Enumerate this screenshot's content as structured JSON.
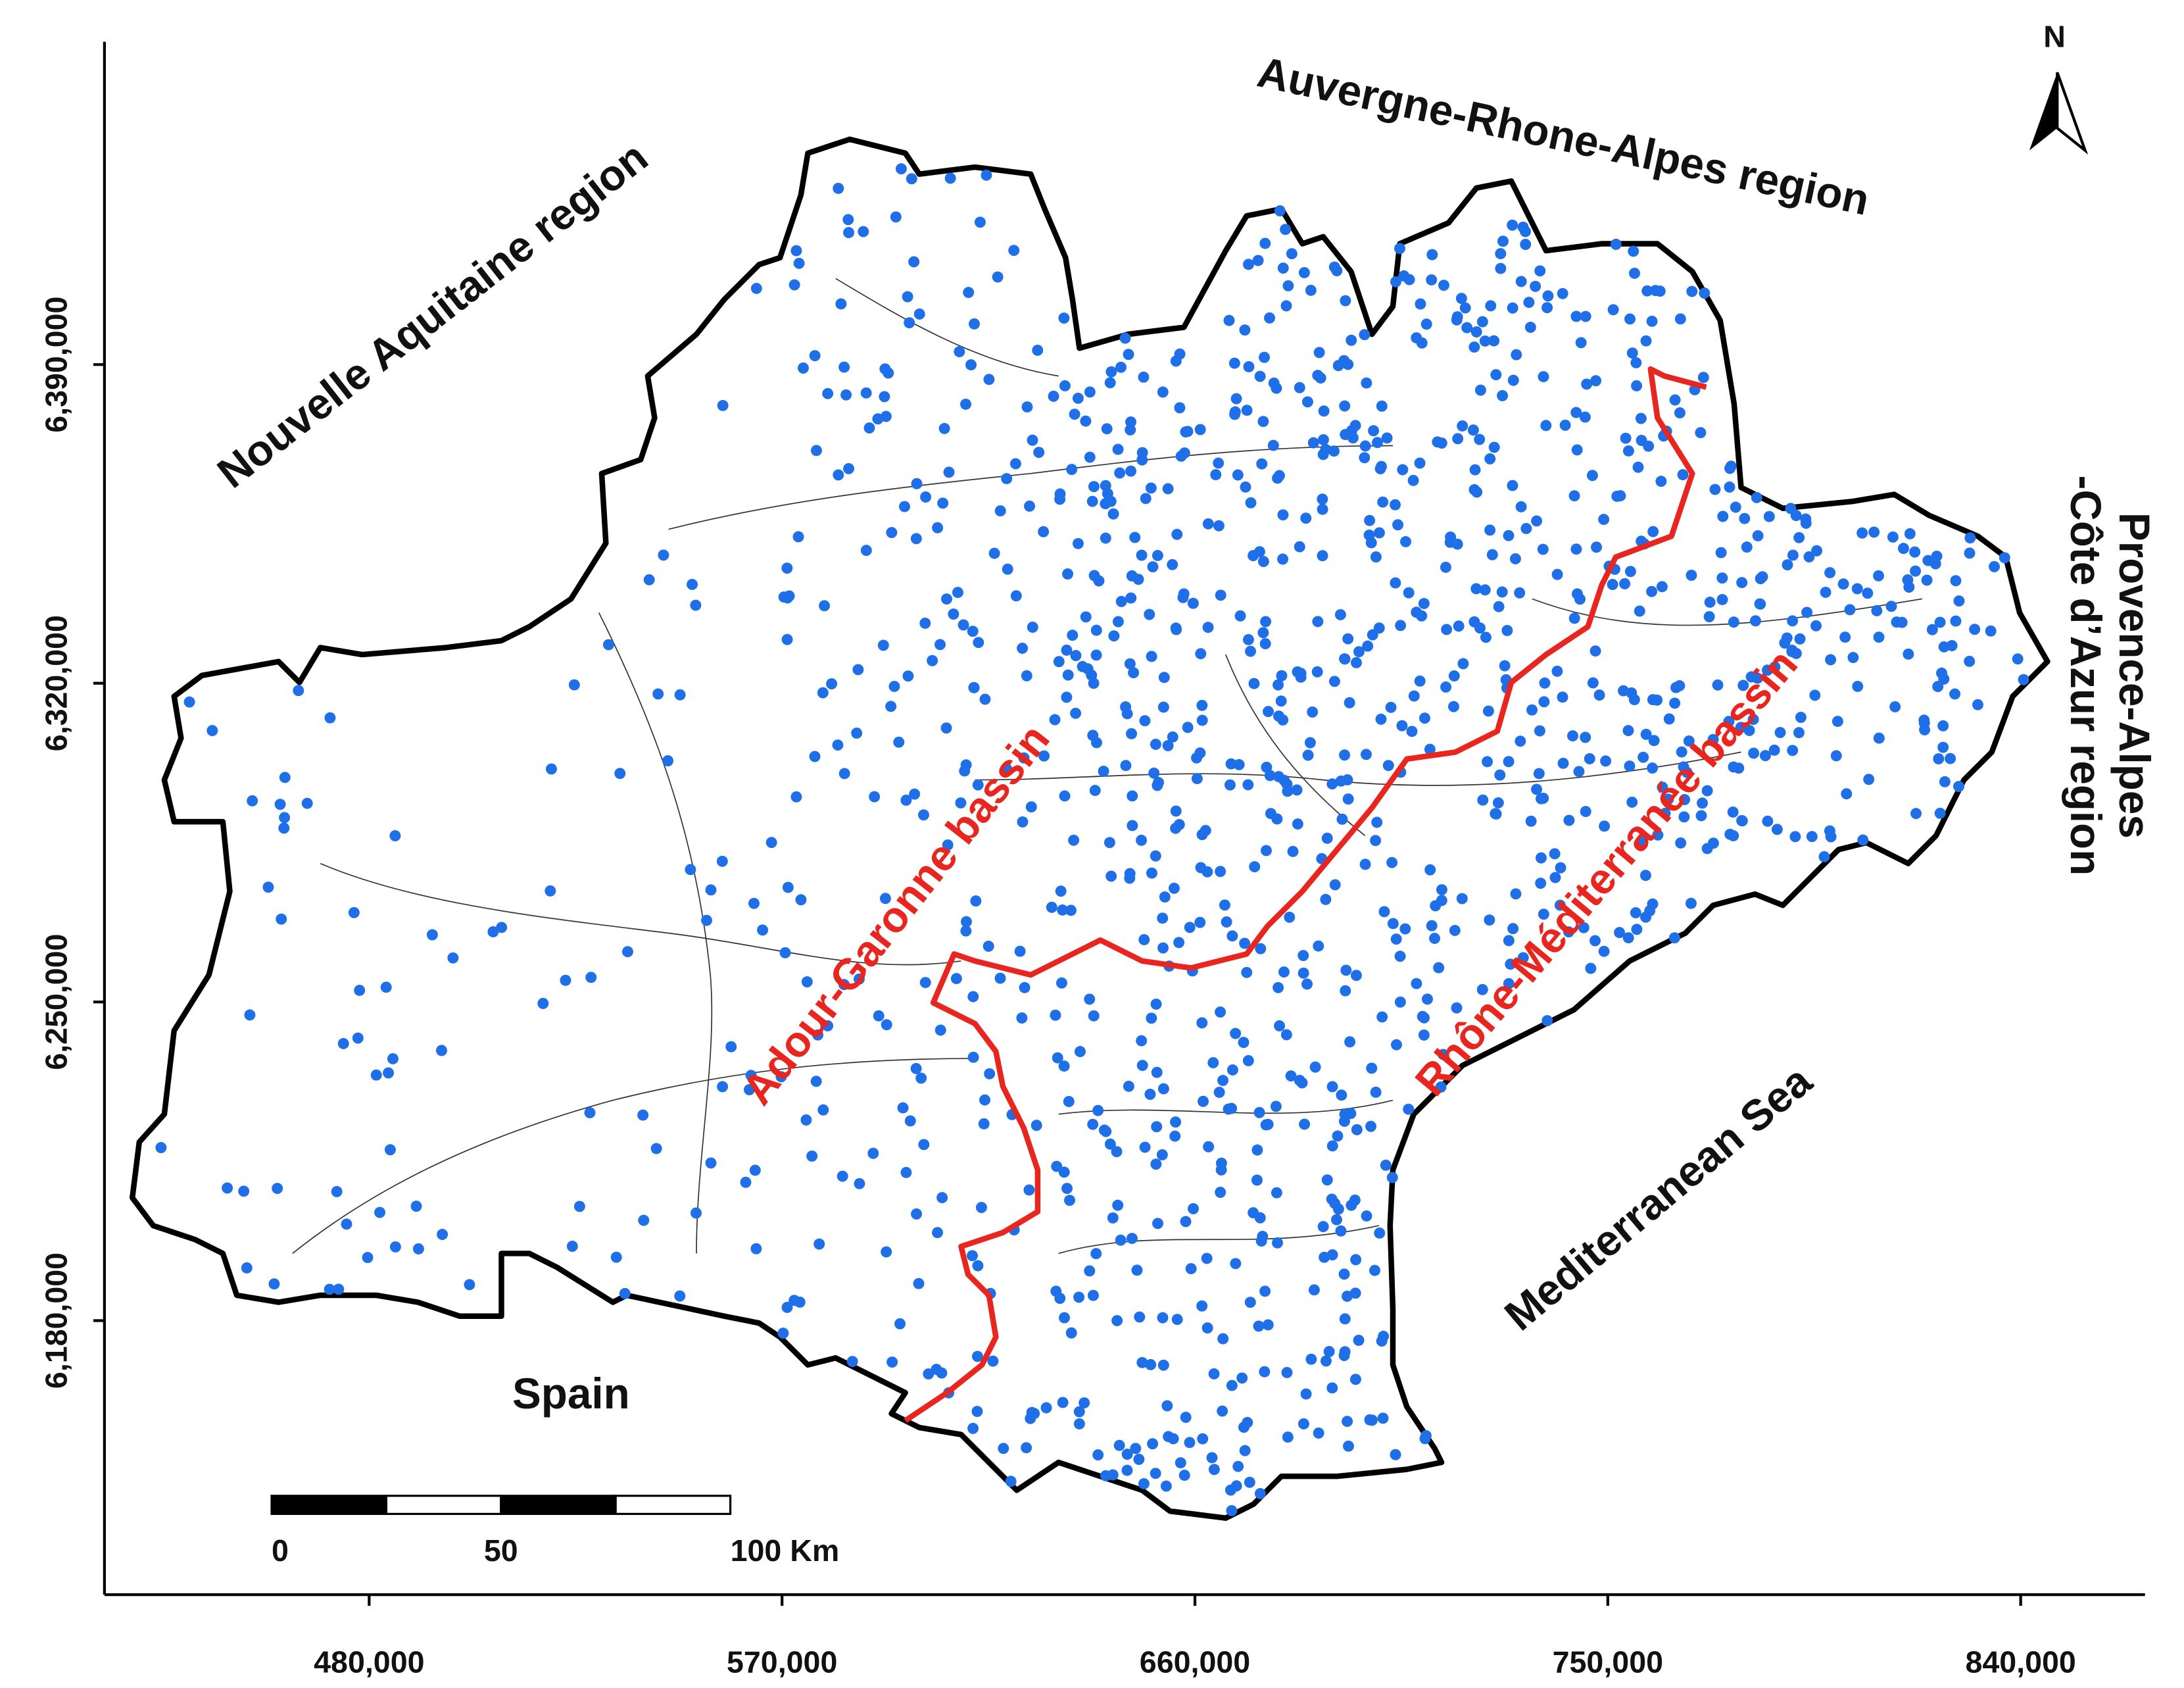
{
  "map": {
    "regions": [
      "Nouvelle Aquitaine region",
      "Auvergne-Rhone-Alpes region",
      "Provence-Alpes",
      "-Côte d’Azur region"
    ],
    "basins": [
      "Adour-Garonne bassin",
      "Rhône-Méditerranée bassin"
    ],
    "sea": "Mediterranean Sea",
    "country": "Spain",
    "north": "N",
    "scale_bar": {
      "ticks": [
        {
          "value": 0,
          "label": "0"
        },
        {
          "value": 50,
          "label": "50"
        },
        {
          "value": 100,
          "label": "100 Km"
        }
      ]
    },
    "axes": {
      "xlim": [
        422300,
        867100
      ],
      "ylim": [
        6119800,
        6460900
      ],
      "xticks": [
        {
          "value": 480000,
          "label": "480,000"
        },
        {
          "value": 570000,
          "label": "570,000"
        },
        {
          "value": 660000,
          "label": "660,000"
        },
        {
          "value": 750000,
          "label": "750,000"
        },
        {
          "value": 840000,
          "label": "840,000"
        }
      ],
      "yticks": [
        {
          "value": 6180000,
          "label": "6,180,000"
        },
        {
          "value": 6250000,
          "label": "6,250,000"
        },
        {
          "value": 6320000,
          "label": "6,320,000"
        },
        {
          "value": 6390000,
          "label": "6,390,000"
        }
      ]
    }
  }
}
